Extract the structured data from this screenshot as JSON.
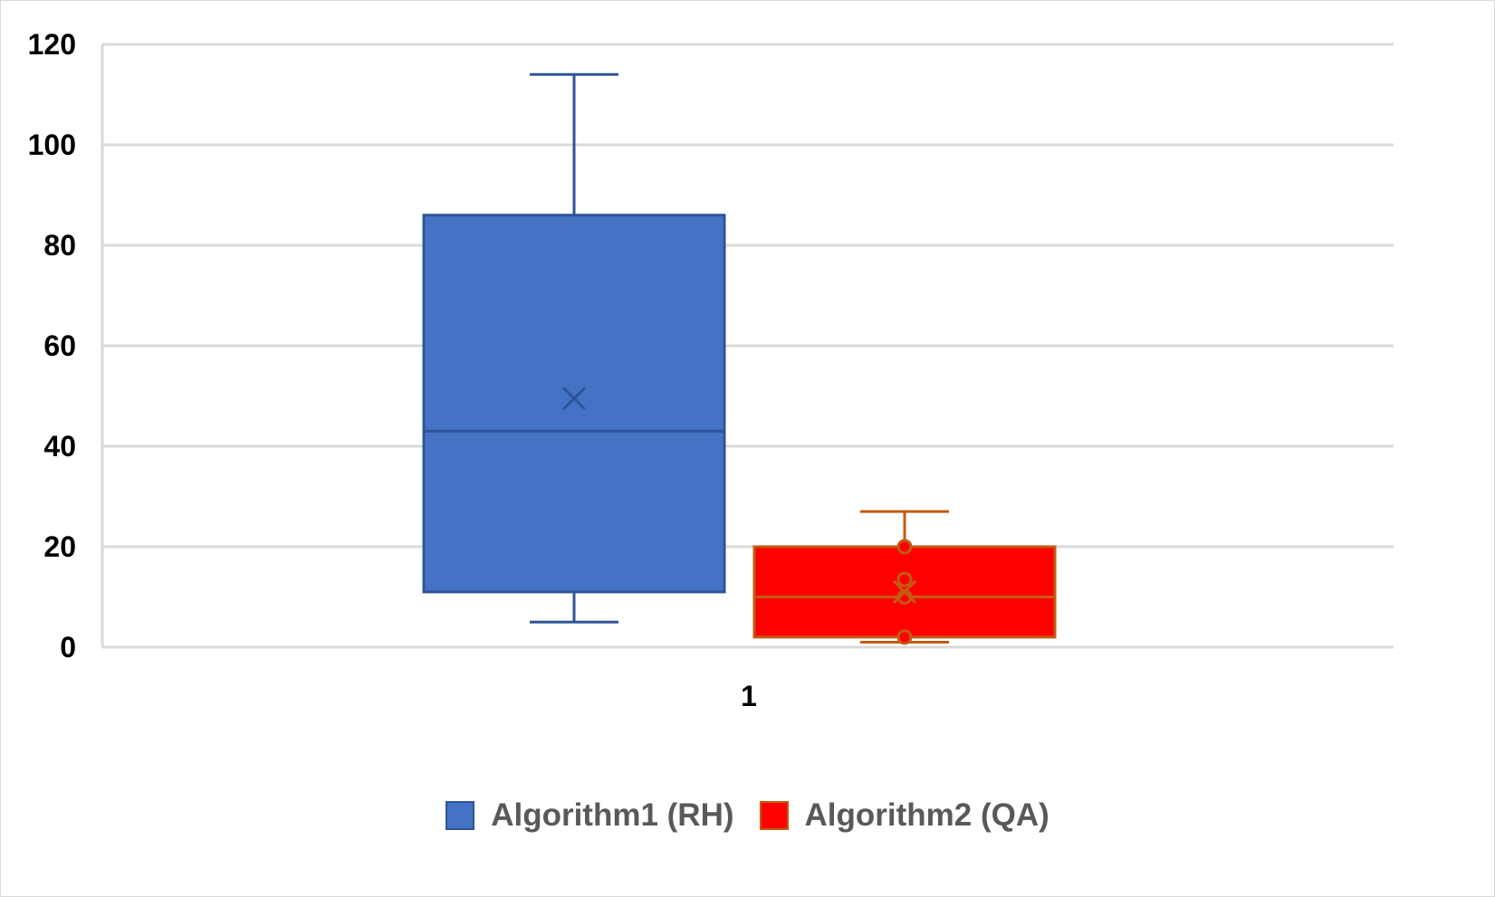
{
  "chart_data": {
    "type": "boxplot",
    "categories": [
      "1"
    ],
    "ylim": [
      0,
      120
    ],
    "y_ticks": [
      "0",
      "20",
      "40",
      "60",
      "80",
      "100",
      "120"
    ],
    "grid": true,
    "legend_position": "bottom",
    "series": [
      {
        "name": "Algorithm1 (RH)",
        "color": "#4472c4",
        "stroke": "#2f5597",
        "min": 5,
        "q1": 11,
        "median": 43,
        "q3": 86,
        "max": 114,
        "mean": 49.5,
        "points": []
      },
      {
        "name": "Algorithm2 (QA)",
        "color": "#ff0000",
        "stroke": "#c55a11",
        "min": 1,
        "q1": 2,
        "median": 10,
        "q3": 20,
        "max": 27,
        "mean": 11,
        "points": [
          2,
          10,
          13.5,
          20
        ]
      }
    ]
  }
}
